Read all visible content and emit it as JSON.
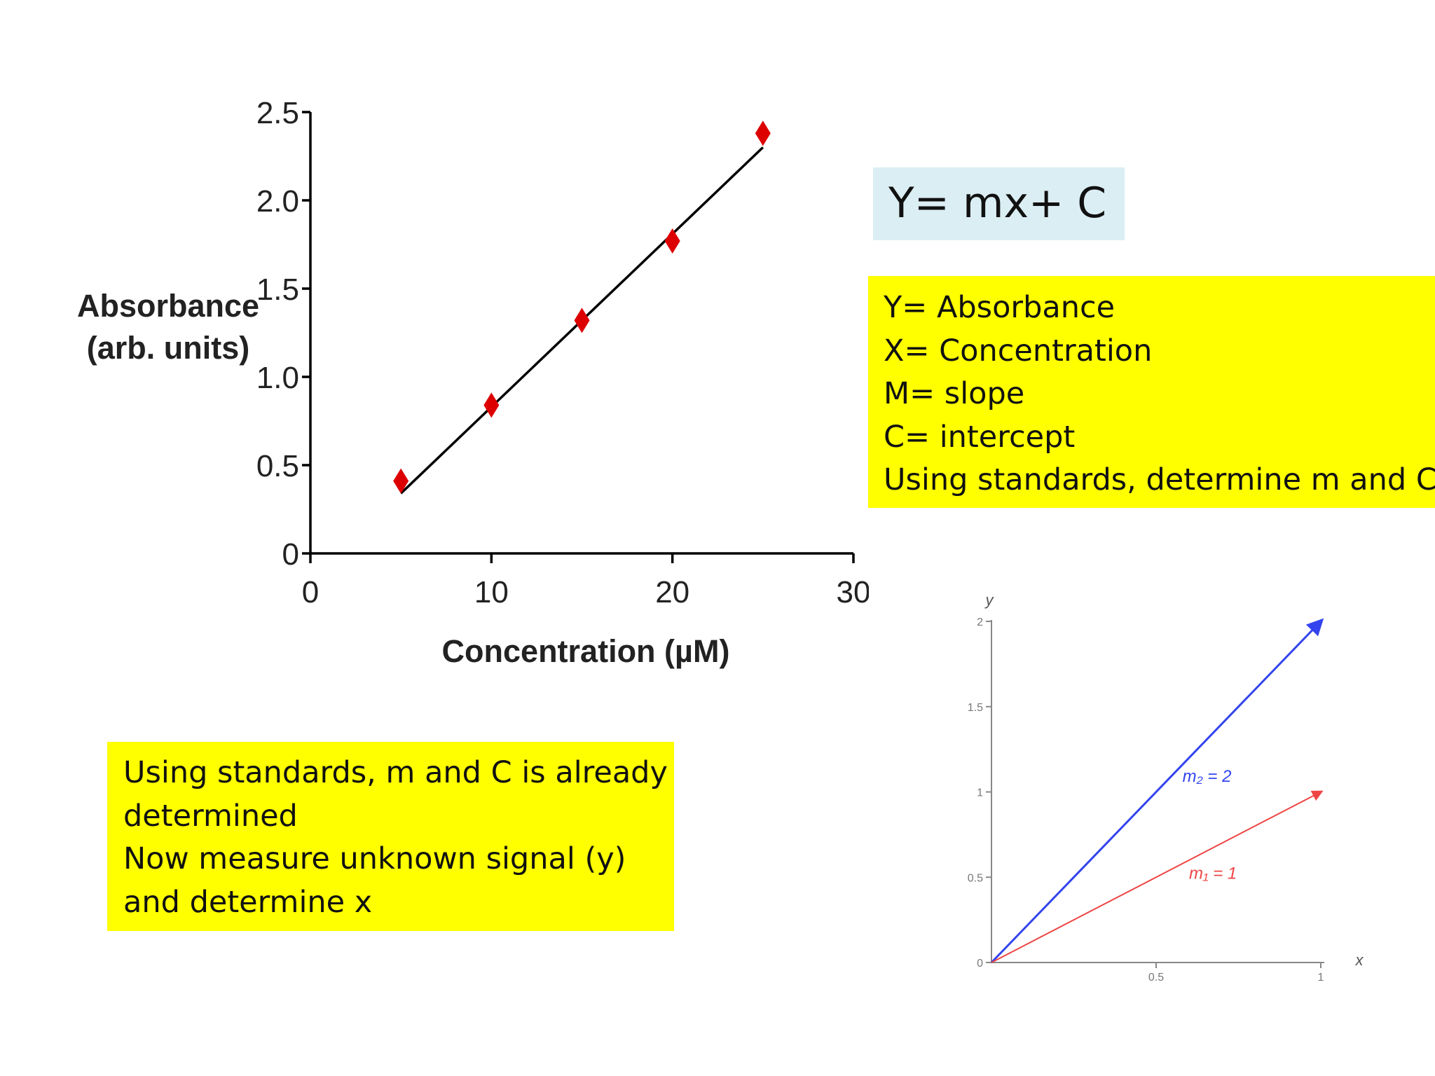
{
  "equation": "Y= mx+ C",
  "definitions": [
    "Y= Absorbance",
    "X= Concentration",
    "M= slope",
    "C= intercept",
    "Using standards, determine m and C"
  ],
  "note": [
    "Using standards, m and C is already",
    "determined",
    "Now measure unknown signal (y)",
    "and determine x"
  ],
  "colors": {
    "marker": "#dd0000",
    "fit_line": "#000000",
    "blue_line": "#3344ee",
    "red_line": "#ee4444",
    "highlight": "#ffff00",
    "equation_bg": "#dbeef3"
  },
  "chart_data": [
    {
      "type": "scatter",
      "title": "",
      "xlabel": "Concentration (µM)",
      "ylabel_lines": [
        "Absorbance",
        "(arb. units)"
      ],
      "xlim": [
        0,
        30
      ],
      "ylim": [
        0,
        2.5
      ],
      "x_ticks": [
        0,
        10,
        20,
        30
      ],
      "x_tick_labels": [
        "0",
        "10",
        "20",
        "30"
      ],
      "y_ticks": [
        0,
        0.5,
        1.0,
        1.5,
        2.0,
        2.5
      ],
      "y_tick_labels": [
        "0",
        "0.5",
        "1.0",
        "1.5",
        "2.0",
        "2.5"
      ],
      "grid": false,
      "points": [
        {
          "x": 5,
          "y": 0.41
        },
        {
          "x": 10,
          "y": 0.84
        },
        {
          "x": 15,
          "y": 1.32
        },
        {
          "x": 20,
          "y": 1.77
        },
        {
          "x": 25,
          "y": 2.38
        }
      ],
      "fit_line": {
        "x": [
          5,
          25
        ],
        "y": [
          0.34,
          2.3
        ]
      }
    },
    {
      "type": "line",
      "title": "",
      "xlabel": "x",
      "ylabel": "y",
      "xlim": [
        0,
        1
      ],
      "ylim": [
        0,
        2
      ],
      "x_ticks": [
        0.5,
        1
      ],
      "x_tick_labels": [
        "0.5",
        "1"
      ],
      "y_ticks": [
        0,
        0.5,
        1,
        1.5,
        2
      ],
      "y_tick_labels": [
        "0",
        "0.5",
        "1",
        "1.5",
        "2"
      ],
      "grid": false,
      "series": [
        {
          "name": "m₂ = 2",
          "x": [
            0,
            1
          ],
          "y": [
            0,
            2
          ]
        },
        {
          "name": "m₁ = 1",
          "x": [
            0,
            1
          ],
          "y": [
            0,
            1
          ]
        }
      ]
    }
  ]
}
